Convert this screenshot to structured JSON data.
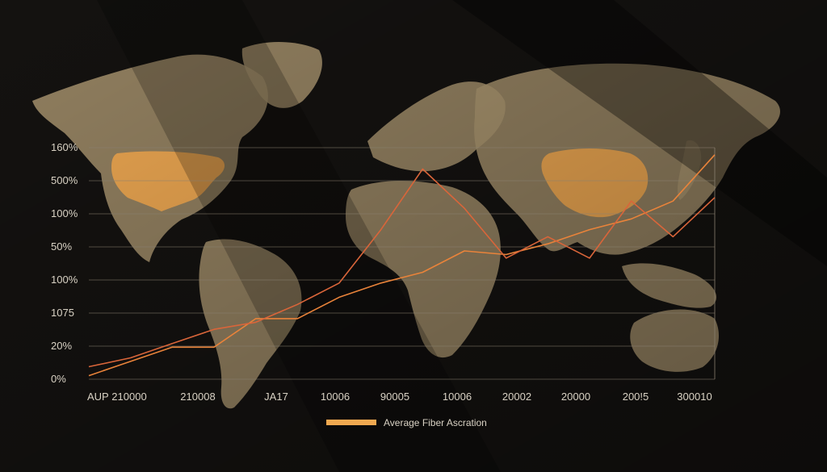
{
  "chart_data": {
    "type": "line",
    "title": "",
    "xlabel": "",
    "ylabel": "",
    "x_tick_labels": [
      "AUP",
      "210000",
      "210008",
      "JA17",
      "10006",
      "90005",
      "10006",
      "20002",
      "20000",
      "200!5",
      "300010"
    ],
    "y_tick_labels": [
      "160%",
      "500%",
      "100%",
      "50%",
      "100%",
      "1075",
      "20%",
      "0%"
    ],
    "legend": {
      "position": "bottom-center",
      "label": "Average Fiber Ascration"
    },
    "grid": true,
    "series": [
      {
        "values": [
          0.1,
          0.5,
          0.9,
          0.9,
          1.7,
          1.7,
          2.3,
          2.7,
          3.0,
          3.6,
          3.5,
          3.8,
          4.2,
          4.5,
          5.0,
          6.3
        ]
      },
      {
        "values": [
          0.35,
          0.6,
          1.0,
          1.4,
          1.6,
          2.1,
          2.7,
          4.2,
          5.9,
          4.8,
          3.4,
          4.0,
          3.4,
          5.0,
          4.0,
          5.1
        ]
      }
    ],
    "colors": {
      "series_1": "#e9833a",
      "series_2": "#d9653a",
      "highlight": "#f0a850",
      "land": "#b5a17c"
    }
  }
}
